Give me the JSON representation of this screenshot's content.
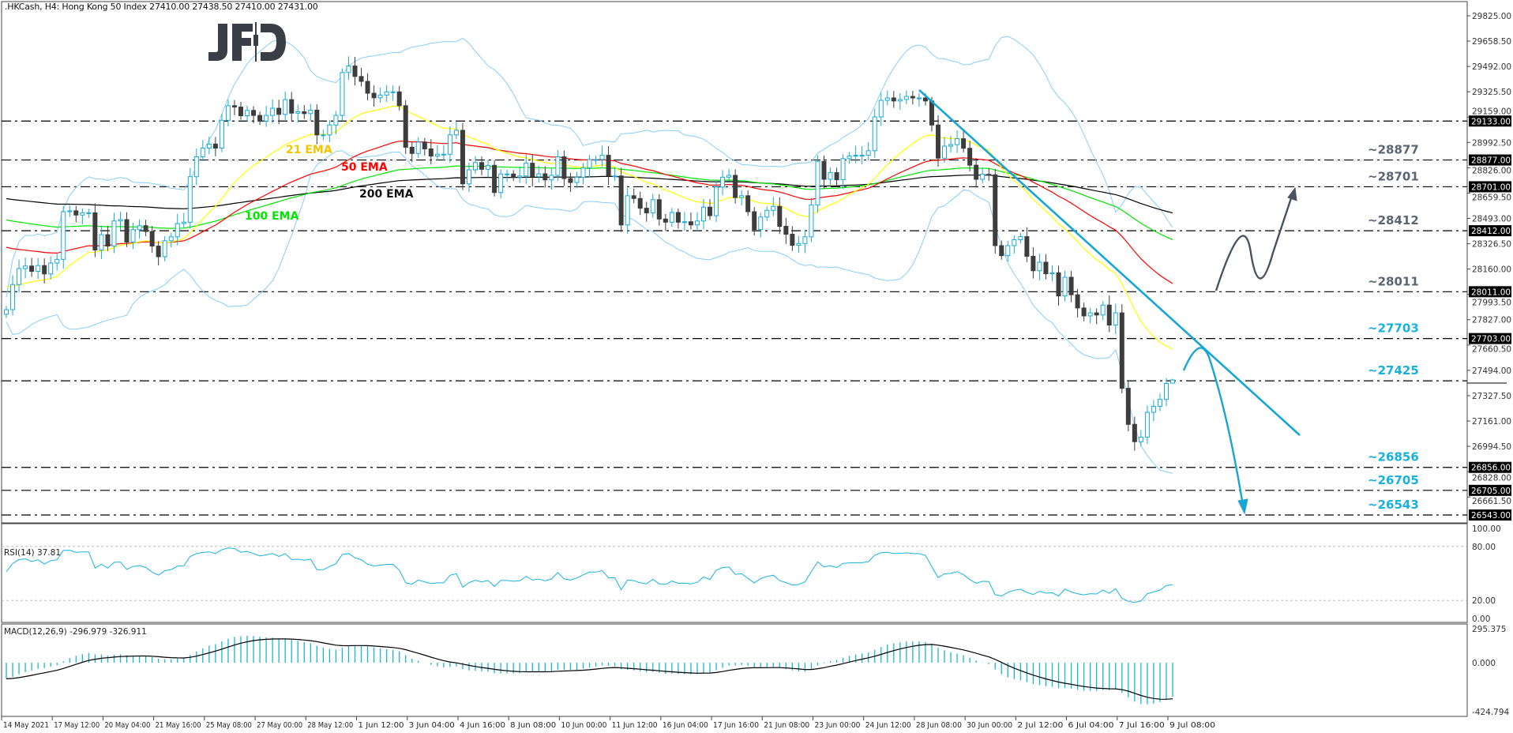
{
  "header": {
    "symbol_line": ".HKCash, H4:  Hong Kong 50 Index  27410.00 27438.50 27410.00 27431.00"
  },
  "logo": {
    "text": "JFD",
    "color": "#3a3f47"
  },
  "colors": {
    "bull": "#18a9d8",
    "bear": "#3d3d3d",
    "ema21": "#ffff00",
    "ema21_label": "#f2c500",
    "ema50": "#ff0000",
    "ema100": "#00e600",
    "ema200": "#000000",
    "bollinger": "#87cefa",
    "rsi": "#18b4e0",
    "macd_hist": "#18b4e0",
    "macd_signal": "#000000",
    "level_gray": "#5b6572",
    "level_cyan": "#17b1dc",
    "trendline": "#17a6d3",
    "arrow_up": "#4a5360"
  },
  "chart_data": {
    "type": "candlestick",
    "title": ".HKCash, H4: Hong Kong 50 Index",
    "ylim": [
      26500,
      29900
    ],
    "y_ticks": [
      "29825.00",
      "29658.50",
      "29492.00",
      "29325.50",
      "29159.00",
      "28992.50",
      "28826.00",
      "28659.50",
      "28493.00",
      "28326.50",
      "28160.00",
      "27993.50",
      "27827.00",
      "27660.50",
      "27494.00",
      "27327.50",
      "27161.00",
      "26994.50",
      "26828.00",
      "26661.50"
    ],
    "x_ticks": [
      "14 May 2021",
      "17 May 12:00",
      "20 May 04:00",
      "21 May 16:00",
      "25 May 08:00",
      "27 May 00:00",
      "28 May 12:00",
      "1 Jun 12:00",
      "3 Jun 04:00",
      "4 Jun 16:00",
      "8 Jun 08:00",
      "10 Jun 00:00",
      "11 Jun 12:00",
      "16 Jun 04:00",
      "17 Jun 16:00",
      "21 Jun 08:00",
      "23 Jun 00:00",
      "24 Jun 12:00",
      "28 Jun 08:00",
      "30 Jun 00:00",
      "2 Jul 12:00",
      "6 Jul 04:00",
      "7 Jul 16:00",
      "9 Jul 08:00"
    ],
    "bars_per_x_tick": 8,
    "last_bar": {
      "open": 27410.0,
      "high": 27438.5,
      "low": 27410.0,
      "close": 27431.0
    },
    "closes": [
      27893,
      28058,
      28163,
      28180,
      28145,
      28183,
      28128,
      28200,
      28224,
      28537,
      28543,
      28515,
      28530,
      28530,
      28285,
      28386,
      28311,
      28476,
      28485,
      28337,
      28419,
      28445,
      28407,
      28311,
      28241,
      28346,
      28372,
      28459,
      28468,
      28767,
      28898,
      28955,
      28982,
      28955,
      29138,
      29234,
      29225,
      29168,
      29203,
      29170,
      29133,
      29170,
      29217,
      29177,
      29274,
      29185,
      29194,
      29182,
      29205,
      29042,
      29042,
      29107,
      29170,
      29452,
      29495,
      29426,
      29394,
      29316,
      29286,
      29304,
      29325,
      29325,
      29234,
      28961,
      28920,
      28995,
      28950,
      28903,
      28915,
      28915,
      29042,
      29072,
      28720,
      28812,
      28860,
      28816,
      28842,
      28663,
      28785,
      28785,
      28764,
      28772,
      28856,
      28767,
      28786,
      28746,
      28776,
      28898,
      28755,
      28729,
      28764,
      28825,
      28880,
      28880,
      28908,
      28772,
      28772,
      28450,
      28642,
      28624,
      28560,
      28529,
      28616,
      28489,
      28468,
      28532,
      28468,
      28471,
      28450,
      28476,
      28567,
      28511,
      28699,
      28764,
      28776,
      28630,
      28642,
      28537,
      28420,
      28502,
      28546,
      28572,
      28441,
      28389,
      28316,
      28328,
      28372,
      28581,
      28868,
      28750,
      28794,
      28747,
      28886,
      28903,
      28908,
      28908,
      28938,
      29160,
      29269,
      29285,
      29265,
      29275,
      29295,
      29285,
      29285,
      29265,
      29107,
      28889,
      28968,
      28978,
      29017,
      28954,
      28843,
      28750,
      28783,
      28780,
      28314,
      28248,
      28314,
      28353,
      28373,
      28244,
      28149,
      28205,
      28129,
      28135,
      27983,
      28106,
      27991,
      27904,
      27852,
      27872,
      27858,
      27923,
      27792,
      27872,
      27376,
      27139,
      27025,
      27055,
      27218,
      27257,
      27303,
      27408,
      27431
    ],
    "ema_seeds": {
      "ema21": 28060,
      "ema50": 28320,
      "ema100": 28495,
      "ema200": 28630
    },
    "ema_labels": {
      "ema21": "21 EMA",
      "ema50": "50 EMA",
      "ema100": "100 EMA",
      "ema200": "200 EMA"
    },
    "bollinger": {
      "period": 20,
      "deviations": 2
    },
    "levels": [
      {
        "value": 29133,
        "tag": "29133.00",
        "label": "",
        "tone": "gray"
      },
      {
        "value": 28877,
        "tag": "28877.00",
        "label": "~28877",
        "tone": "gray"
      },
      {
        "value": 28701,
        "tag": "28701.00",
        "label": "~28701",
        "tone": "gray"
      },
      {
        "value": 28412,
        "tag": "28412.00",
        "label": "~28412",
        "tone": "gray"
      },
      {
        "value": 28011,
        "tag": "28011.00",
        "label": "~28011",
        "tone": "gray"
      },
      {
        "value": 27703,
        "tag": "27703.00",
        "label": "~27703",
        "tone": "cyan"
      },
      {
        "value": 27425,
        "tag": "",
        "label": "~27425",
        "tone": "cyan"
      },
      {
        "value": 26856,
        "tag": "26856.00",
        "label": "~26856",
        "tone": "cyan"
      },
      {
        "value": 26705,
        "tag": "26705.00",
        "label": "~26705",
        "tone": "cyan"
      },
      {
        "value": 26543,
        "tag": "26543.00",
        "label": "~26543",
        "tone": "cyan"
      }
    ],
    "rsi": {
      "label": "RSI(14) 37.81",
      "period": 14,
      "levels": [
        80,
        20
      ],
      "ticks": [
        "100.00",
        "80.00",
        "20.00",
        "0.00"
      ],
      "seed_gain": 30,
      "seed_loss": 28
    },
    "macd": {
      "label": "MACD(12,26,9) -296.979 -326.911",
      "fast": 12,
      "slow": 26,
      "signal": 9,
      "ticks": [
        "295.375",
        "0.000",
        "-424.794"
      ],
      "range": [
        -424.794,
        295.375
      ],
      "seed_fast": 28010,
      "seed_slow": 28150,
      "seed_signal": -140
    }
  }
}
